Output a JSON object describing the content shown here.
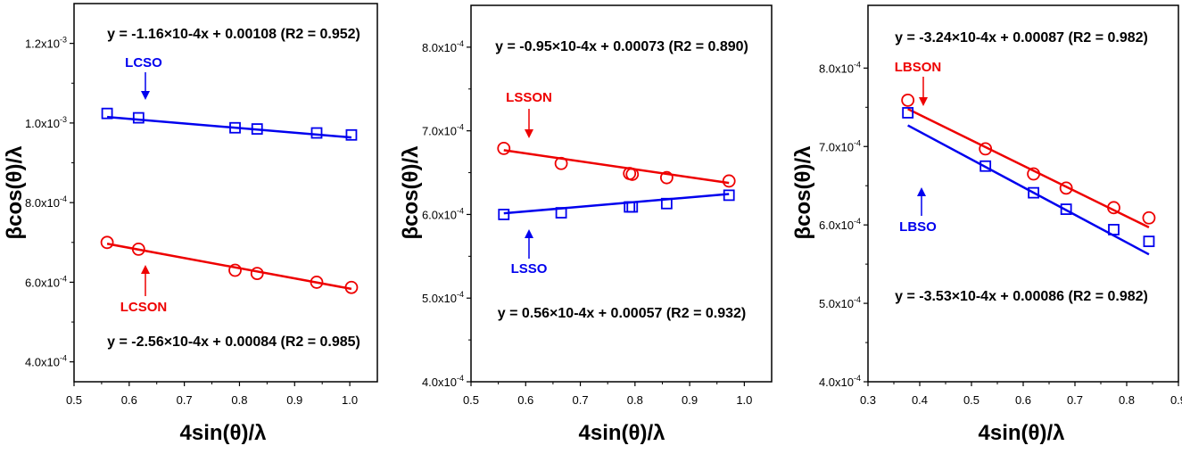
{
  "chart_data": [
    {
      "type": "scatter",
      "xlabel": "4sin(θ)/λ",
      "ylabel": "βcos(θ)/λ",
      "xlim": [
        0.5,
        1.05
      ],
      "ylim": [
        0.00035,
        0.0013
      ],
      "x_ticks": [
        0.5,
        0.6,
        0.7,
        0.8,
        0.9,
        1.0
      ],
      "x_tick_labels": [
        "0.5",
        "0.6",
        "0.7",
        "0.8",
        "0.9",
        "1.0"
      ],
      "y_ticks": [
        0.0004,
        0.0006,
        0.0008,
        0.001,
        0.0012
      ],
      "y_tick_labels": [
        "4.0x10-4",
        "6.0x10-4",
        "8.0x10-4",
        "1.0x10-3",
        "1.2x10-3"
      ],
      "grid": false,
      "series": [
        {
          "name": "LCSO",
          "marker": "square",
          "color": "#0000ee",
          "x": [
            0.56,
            0.617,
            0.792,
            0.832,
            0.94,
            1.003
          ],
          "y": [
            0.001024,
            0.001013,
            0.000988,
            0.000985,
            0.000975,
            0.00097
          ],
          "fit": {
            "slope": -0.000116,
            "intercept": 0.00108
          },
          "equation": "y = -1.16×10-4x + 0.00108 (R2 = 0.952)"
        },
        {
          "name": "LCSON",
          "marker": "circle",
          "color": "#ee0000",
          "x": [
            0.56,
            0.617,
            0.792,
            0.832,
            0.94,
            1.003
          ],
          "y": [
            0.0007,
            0.000683,
            0.00063,
            0.000622,
            0.0006,
            0.000587
          ],
          "fit": {
            "slope": -0.000256,
            "intercept": 0.00084
          },
          "equation": "y = -2.56×10-4x + 0.00084 (R2 = 0.985)"
        }
      ]
    },
    {
      "type": "scatter",
      "xlabel": "",
      "ylabel": "βcos(θ)/λ",
      "xlim": [
        0.5,
        1.05
      ],
      "ylim": [
        0.0004,
        0.00085
      ],
      "x_ticks": [
        0.5,
        0.6,
        0.7,
        0.8,
        0.9,
        1.0
      ],
      "x_tick_labels": [
        "0.5",
        "0.6",
        "0.7",
        "0.8",
        "0.9",
        "1.0"
      ],
      "y_ticks": [
        0.0004,
        0.0005,
        0.0006,
        0.0007,
        0.0008
      ],
      "y_tick_labels": [
        "4.0x10-4",
        "5.0x10-4",
        "6.0x10-4",
        "7.0x10-4",
        "8.0x10-4"
      ],
      "grid": false,
      "series": [
        {
          "name": "LSSON",
          "marker": "circle",
          "color": "#ee0000",
          "x": [
            0.56,
            0.665,
            0.79,
            0.795,
            0.858,
            0.972
          ],
          "y": [
            0.000679,
            0.000661,
            0.000649,
            0.000648,
            0.000644,
            0.00064
          ],
          "fit": {
            "slope": -9.5e-05,
            "intercept": 0.00073
          },
          "equation": "y = -0.95×10-4x + 0.00073 (R2 = 0.890)"
        },
        {
          "name": "LSSO",
          "marker": "square",
          "color": "#0000ee",
          "x": [
            0.56,
            0.665,
            0.79,
            0.795,
            0.858,
            0.972
          ],
          "y": [
            0.0006,
            0.000602,
            0.000609,
            0.000609,
            0.000613,
            0.000623
          ],
          "fit": {
            "slope": 5.6e-05,
            "intercept": 0.00057
          },
          "equation": "y = 0.56×10-4x + 0.00057 (R2 = 0.932)"
        }
      ]
    },
    {
      "type": "scatter",
      "xlabel": "4sin(θ)/λ",
      "ylabel": "βcos(θ)/λ",
      "xlim": [
        0.3,
        0.9
      ],
      "ylim": [
        0.0004,
        0.00088
      ],
      "x_ticks": [
        0.3,
        0.4,
        0.5,
        0.6,
        0.7,
        0.8,
        0.9
      ],
      "x_tick_labels": [
        "0.3",
        "0.4",
        "0.5",
        "0.6",
        "0.7",
        "0.8",
        "0.9"
      ],
      "y_ticks": [
        0.0004,
        0.0005,
        0.0006,
        0.0007,
        0.0008
      ],
      "y_tick_labels": [
        "4.0x10-4",
        "5.0x10-4",
        "6.0x10-4",
        "7.0x10-4",
        "8.0x10-4"
      ],
      "grid": false,
      "series": [
        {
          "name": "LBSON",
          "marker": "circle",
          "color": "#ee0000",
          "x": [
            0.377,
            0.527,
            0.62,
            0.683,
            0.775,
            0.843
          ],
          "y": [
            0.000759,
            0.000697,
            0.000665,
            0.000647,
            0.000622,
            0.000609
          ],
          "fit": {
            "slope": -0.000324,
            "intercept": 0.00087
          },
          "equation": "y = -3.24×10-4x + 0.00087 (R2 = 0.982)"
        },
        {
          "name": "LBSO",
          "marker": "square",
          "color": "#0000ee",
          "x": [
            0.377,
            0.527,
            0.62,
            0.683,
            0.775,
            0.843
          ],
          "y": [
            0.000743,
            0.000675,
            0.000641,
            0.00062,
            0.000594,
            0.000579
          ],
          "fit": {
            "slope": -0.000353,
            "intercept": 0.00086
          },
          "equation": "y = -3.53×10-4x + 0.00086 (R2 = 0.982)"
        }
      ]
    }
  ]
}
